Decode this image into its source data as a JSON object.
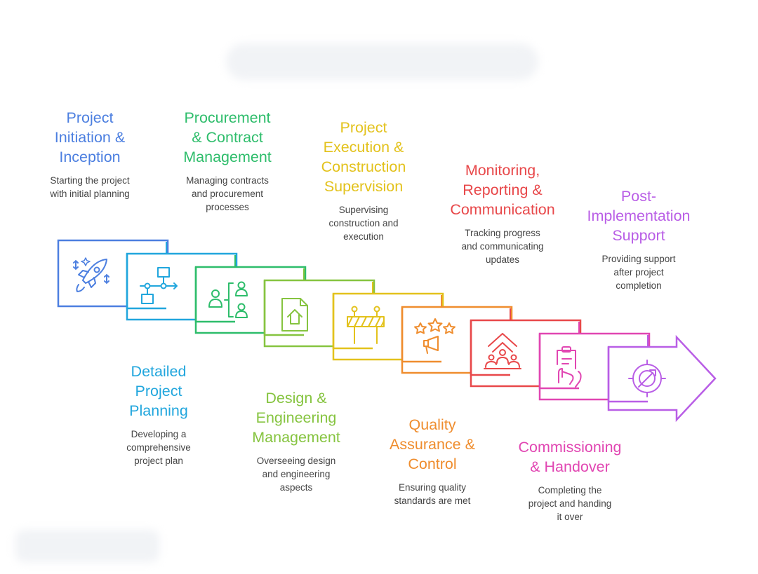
{
  "steps": [
    {
      "title": "Project\nInitiation &\nInception",
      "desc": "Starting the project\nwith initial planning",
      "color": "#4C7FE0",
      "icon": "rocket-icon"
    },
    {
      "title": "Detailed\nProject\nPlanning",
      "desc": "Developing a\ncomprehensive\nproject plan",
      "color": "#21A6DD",
      "icon": "flowchart-icon"
    },
    {
      "title": "Procurement\n& Contract\nManagement",
      "desc": "Managing contracts\nand procurement\nprocesses",
      "color": "#2EBD6B",
      "icon": "people-hierarchy-icon"
    },
    {
      "title": "Design &\nEngineering\nManagement",
      "desc": "Overseeing design\nand engineering\naspects",
      "color": "#86C440",
      "icon": "document-house-icon"
    },
    {
      "title": "Project\nExecution &\nConstruction\nSupervision",
      "desc": "Supervising\nconstruction and\nexecution",
      "color": "#E3C21C",
      "icon": "barrier-icon"
    },
    {
      "title": "Quality\nAssurance &\nControl",
      "desc": "Ensuring quality\nstandards are met",
      "color": "#EF8D2E",
      "icon": "stars-megaphone-icon"
    },
    {
      "title": "Monitoring,\nReporting &\nCommunication",
      "desc": "Tracking progress\nand communicating\nupdates",
      "color": "#E8484A",
      "icon": "team-growth-icon"
    },
    {
      "title": "Commissioning\n& Handover",
      "desc": "Completing the\nproject and handing\nit over",
      "color": "#E146B2",
      "icon": "clipboard-hand-icon"
    },
    {
      "title": "Post-\nImplementation\nSupport",
      "desc": "Providing support\nafter project\ncompletion",
      "color": "#B95EE6",
      "icon": "target-icon"
    }
  ]
}
